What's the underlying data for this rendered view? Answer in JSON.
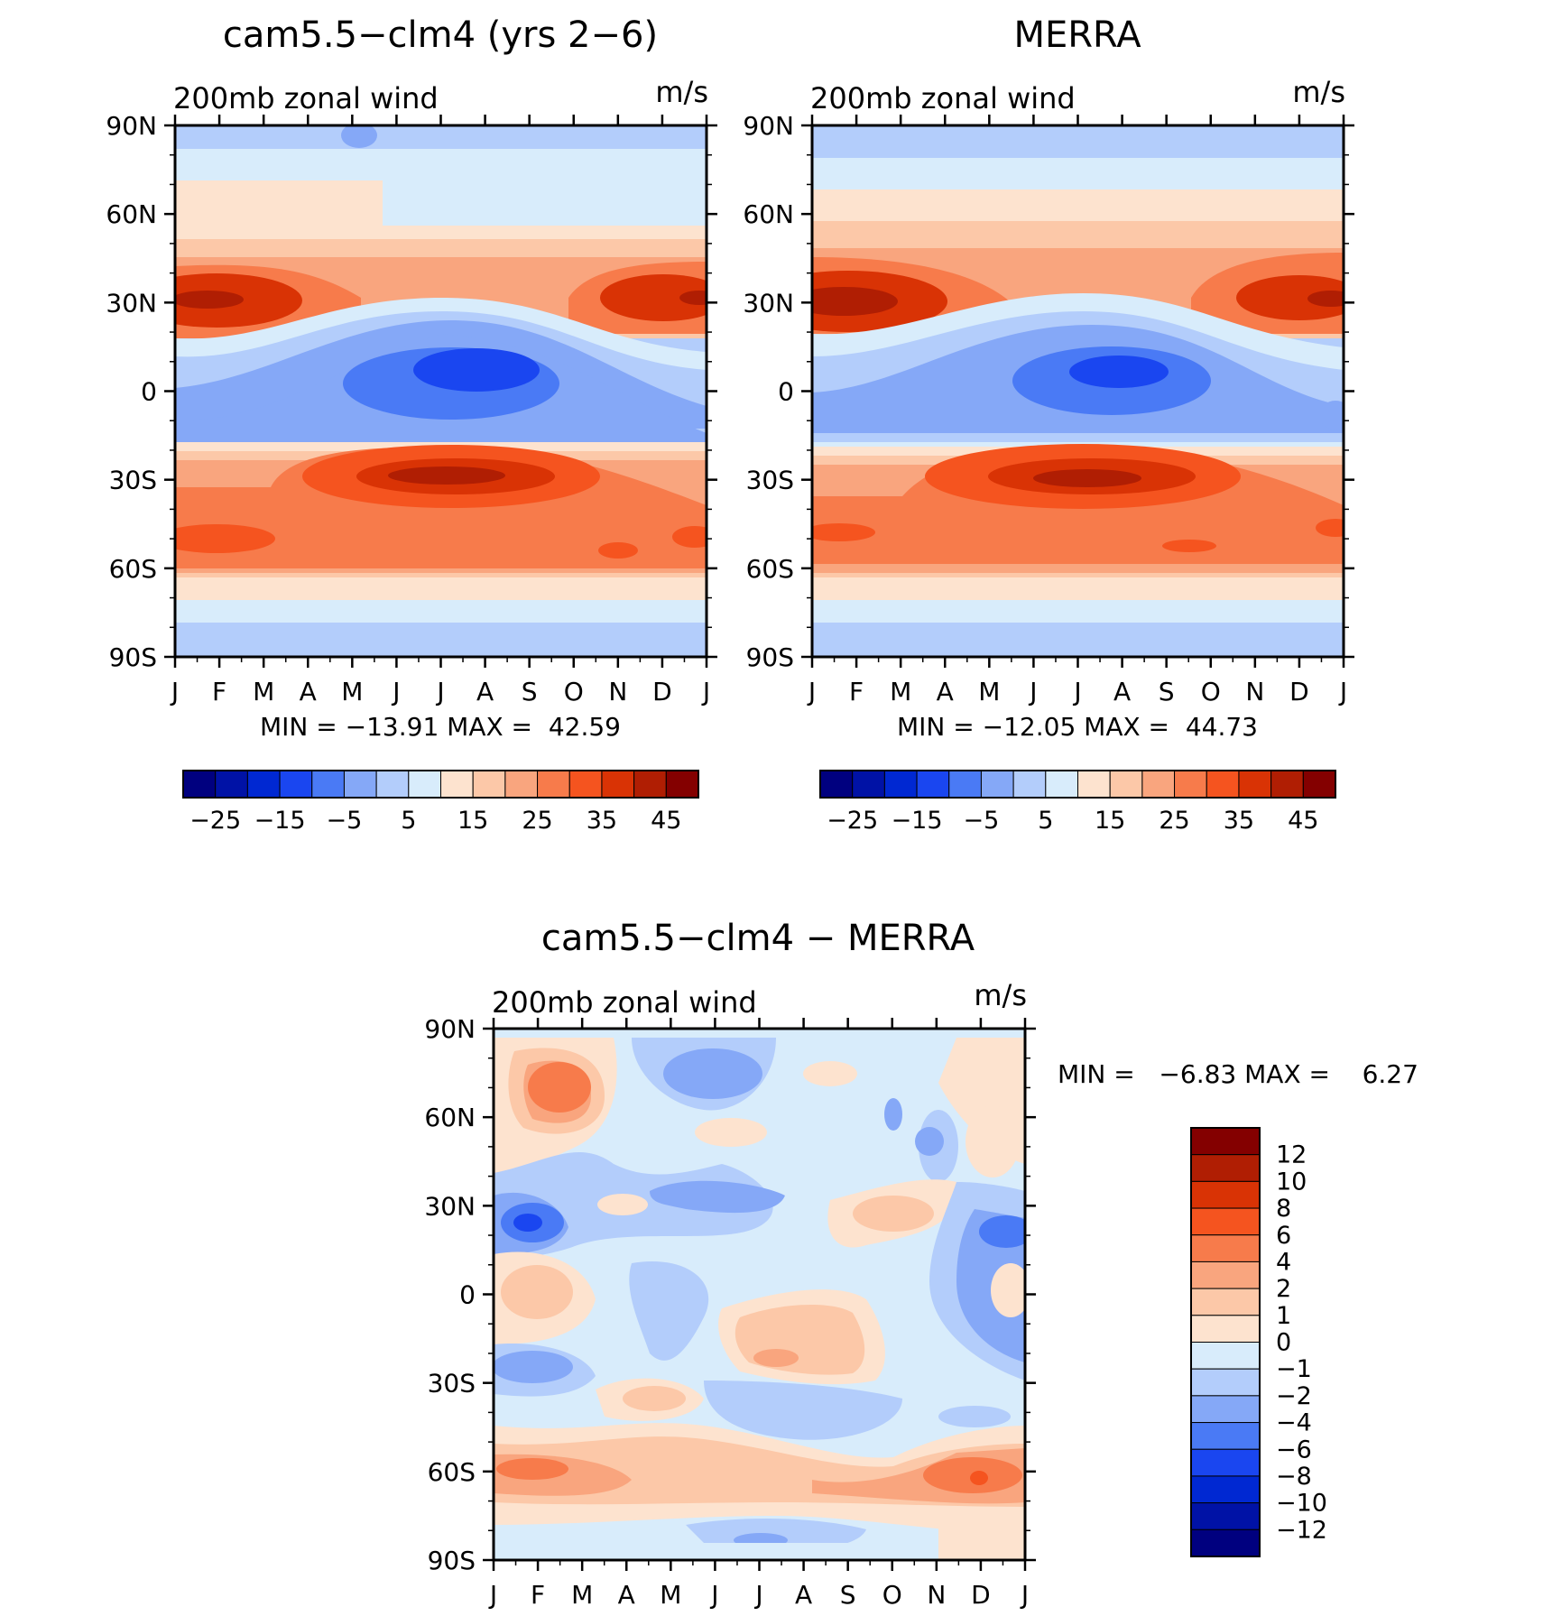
{
  "chart_data": [
    {
      "type": "heatmap",
      "title": "cam5.5−clm4 (yrs 2−6)",
      "left_label": "200mb zonal wind",
      "units": "m/s",
      "min_max_text": "MIN = −13.91 MAX =  42.59",
      "min": -13.91,
      "max": 42.59,
      "x_ticks": [
        "J",
        "F",
        "M",
        "A",
        "M",
        "J",
        "J",
        "A",
        "S",
        "O",
        "N",
        "D",
        "J"
      ],
      "y_ticks": [
        "90N",
        "60N",
        "30N",
        "0",
        "30S",
        "60S",
        "90S"
      ],
      "ylim": [
        -90,
        90
      ],
      "colorbar_labels": [
        "−25",
        "−15",
        "−5",
        "5",
        "15",
        "25",
        "35",
        "45"
      ],
      "colorbar_levels": [
        -30,
        -25,
        -20,
        -15,
        -10,
        -5,
        0,
        5,
        10,
        15,
        20,
        25,
        30,
        35,
        40,
        45
      ],
      "features": [
        {
          "month": 1.0,
          "lat": 30,
          "value": 42
        },
        {
          "month": 12.0,
          "lat": 30,
          "value": 38
        },
        {
          "month": 7.0,
          "lat": 5,
          "value": -13
        },
        {
          "month": 7.0,
          "lat": -30,
          "value": 40
        },
        {
          "month": 1.5,
          "lat": -50,
          "value": 30
        },
        {
          "month": 11.0,
          "lat": -55,
          "value": 30
        }
      ]
    },
    {
      "type": "heatmap",
      "title": "MERRA",
      "left_label": "200mb zonal wind",
      "units": "m/s",
      "min_max_text": "MIN = −12.05 MAX =  44.73",
      "min": -12.05,
      "max": 44.73,
      "x_ticks": [
        "J",
        "F",
        "M",
        "A",
        "M",
        "J",
        "J",
        "A",
        "S",
        "O",
        "N",
        "D",
        "J"
      ],
      "y_ticks": [
        "90N",
        "60N",
        "30N",
        "0",
        "30S",
        "60S",
        "90S"
      ],
      "ylim": [
        -90,
        90
      ],
      "colorbar_labels": [
        "−25",
        "−15",
        "−5",
        "5",
        "15",
        "25",
        "35",
        "45"
      ],
      "colorbar_levels": [
        -30,
        -25,
        -20,
        -15,
        -10,
        -5,
        0,
        5,
        10,
        15,
        20,
        25,
        30,
        35,
        40,
        45
      ],
      "features": [
        {
          "month": 1.0,
          "lat": 30,
          "value": 44
        },
        {
          "month": 12.5,
          "lat": 30,
          "value": 40
        },
        {
          "month": 7.5,
          "lat": 5,
          "value": -12
        },
        {
          "month": 7.0,
          "lat": -30,
          "value": 42
        },
        {
          "month": 1.5,
          "lat": -48,
          "value": 30
        }
      ]
    },
    {
      "type": "heatmap",
      "title": "cam5.5−clm4 − MERRA",
      "left_label": "200mb zonal wind",
      "units": "m/s",
      "min_max_text": "MIN =   −6.83 MAX =    6.27",
      "min": -6.83,
      "max": 6.27,
      "x_ticks": [
        "J",
        "F",
        "M",
        "A",
        "M",
        "J",
        "J",
        "A",
        "S",
        "O",
        "N",
        "D",
        "J"
      ],
      "y_ticks": [
        "90N",
        "60N",
        "30N",
        "0",
        "30S",
        "60S",
        "90S"
      ],
      "ylim": [
        -90,
        90
      ],
      "colorbar_labels": [
        "12",
        "10",
        "8",
        "6",
        "4",
        "2",
        "1",
        "0",
        "−1",
        "−2",
        "−4",
        "−6",
        "−8",
        "−10",
        "−12"
      ],
      "colorbar_levels": [
        -12,
        -10,
        -8,
        -6,
        -4,
        -2,
        -1,
        0,
        1,
        2,
        4,
        6,
        8,
        10,
        12
      ],
      "features": [
        {
          "month": 2.0,
          "lat": 70,
          "value": 4
        },
        {
          "month": 5.5,
          "lat": 75,
          "value": -4
        },
        {
          "month": 1.5,
          "lat": 25,
          "value": -6
        },
        {
          "month": 12.5,
          "lat": 22,
          "value": -6
        },
        {
          "month": 2.0,
          "lat": 5,
          "value": 2
        },
        {
          "month": 7.5,
          "lat": -15,
          "value": 2
        },
        {
          "month": 11.5,
          "lat": -60,
          "value": 5
        },
        {
          "month": 2.5,
          "lat": -60,
          "value": 4
        }
      ]
    }
  ],
  "colors": {
    "left_scale": [
      "#00007f",
      "#0012a6",
      "#0028d2",
      "#1a46f0",
      "#4a7af5",
      "#85a8f7",
      "#b3cdfb",
      "#d8ecfb",
      "#fde3cf",
      "#fcc8a8",
      "#f9a57e",
      "#f77b4b",
      "#f5541f",
      "#d93305",
      "#b01e03",
      "#840000"
    ],
    "diff_scale": [
      "#00007f",
      "#0012a6",
      "#0028d2",
      "#1a46f0",
      "#4a7af5",
      "#85a8f7",
      "#b3cdfb",
      "#d8ecfb",
      "#fde3cf",
      "#fcc8a8",
      "#f9a57e",
      "#f77b4b",
      "#f5541f",
      "#d93305",
      "#b01e03",
      "#840000"
    ]
  }
}
